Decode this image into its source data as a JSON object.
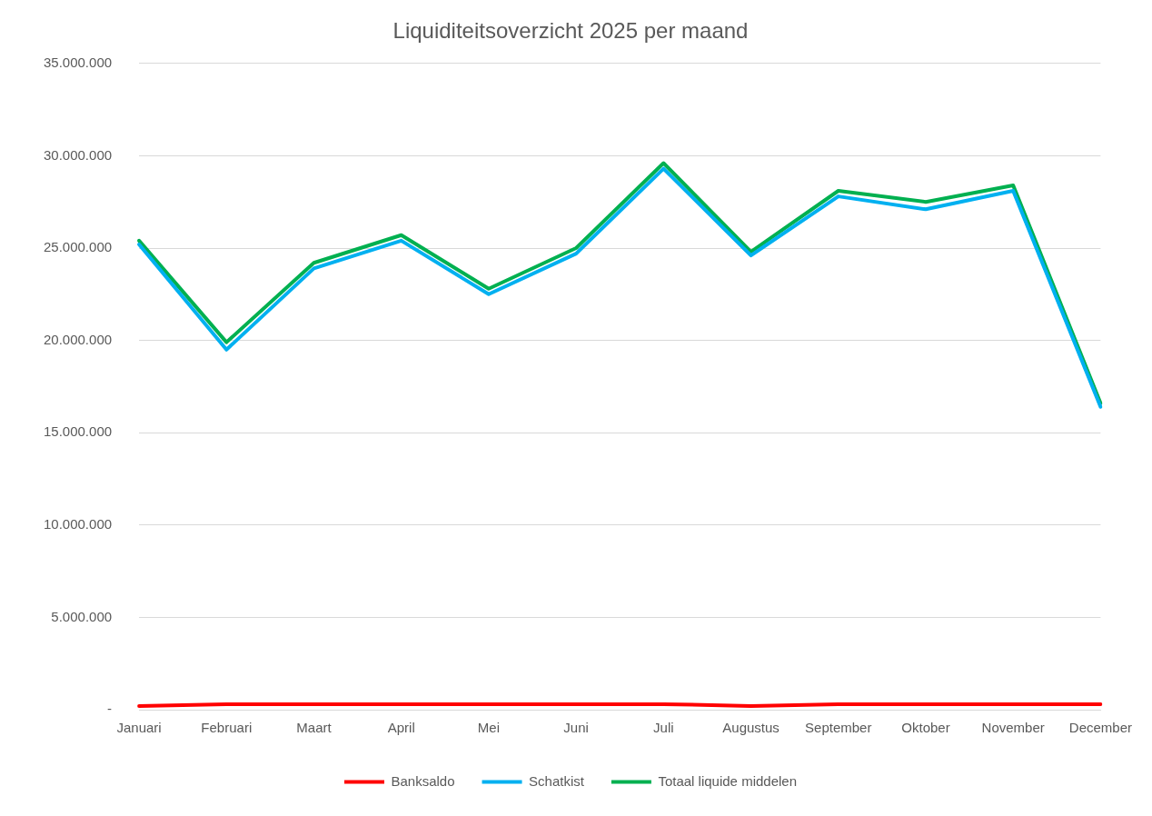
{
  "chart_data": {
    "type": "line",
    "title": "Liquiditeitsoverzicht 2025 per maand",
    "categories": [
      "Januari",
      "Februari",
      "Maart",
      "April",
      "Mei",
      "Juni",
      "Juli",
      "Augustus",
      "September",
      "Oktober",
      "November",
      "December"
    ],
    "series": [
      {
        "name": "Banksaldo",
        "color": "#ff0000",
        "values": [
          200000,
          300000,
          300000,
          300000,
          300000,
          300000,
          300000,
          200000,
          300000,
          300000,
          300000,
          300000
        ]
      },
      {
        "name": "Schatkist",
        "color": "#00b0f0",
        "values": [
          25200000,
          19500000,
          23900000,
          25400000,
          22500000,
          24700000,
          29300000,
          24600000,
          27800000,
          27100000,
          28100000,
          16400000
        ]
      },
      {
        "name": "Totaal liquide middelen",
        "color": "#00b050",
        "values": [
          25400000,
          19900000,
          24200000,
          25700000,
          22800000,
          25000000,
          29600000,
          24800000,
          28100000,
          27500000,
          28400000,
          16600000
        ]
      }
    ],
    "ylim": [
      0,
      35000000
    ],
    "yticks": [
      {
        "value": 0,
        "label": "-"
      },
      {
        "value": 5000000,
        "label": "5.000.000"
      },
      {
        "value": 10000000,
        "label": "10.000.000"
      },
      {
        "value": 15000000,
        "label": "15.000.000"
      },
      {
        "value": 20000000,
        "label": "20.000.000"
      },
      {
        "value": 25000000,
        "label": "25.000.000"
      },
      {
        "value": 30000000,
        "label": "30.000.000"
      },
      {
        "value": 35000000,
        "label": "35.000.000"
      }
    ],
    "grid": "y",
    "legend": "bottom",
    "marker": "none",
    "line_style": "solid"
  }
}
